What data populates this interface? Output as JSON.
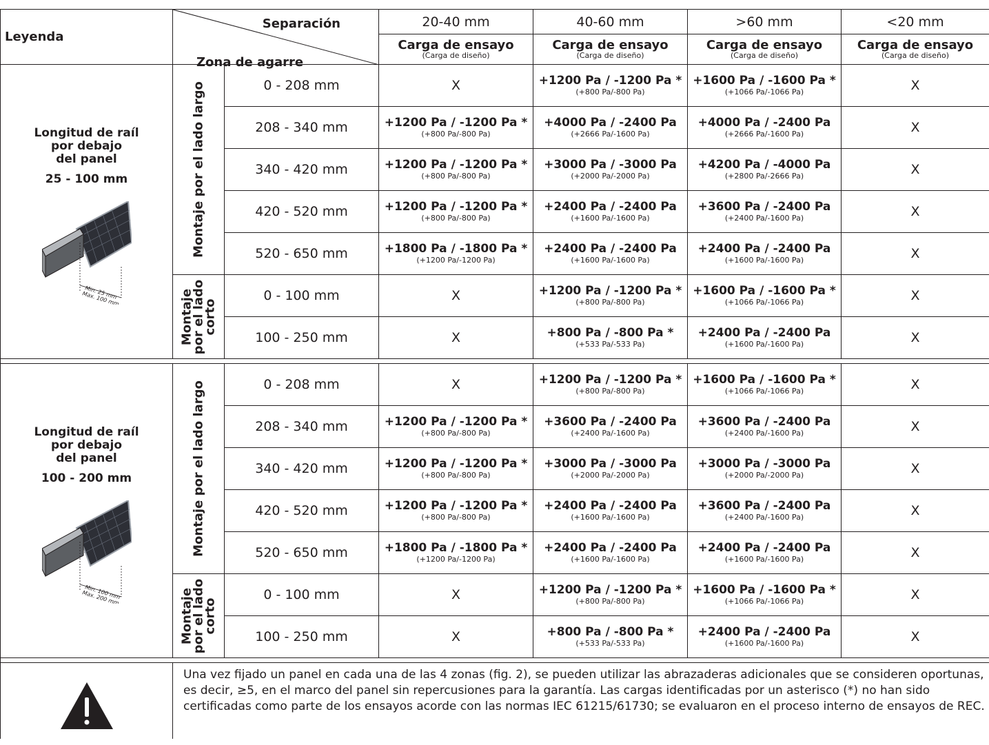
{
  "header": {
    "legend": "Leyenda",
    "separation_label": "Separación",
    "grip_zone_label": "Zona de agarre",
    "columns": [
      {
        "range": "20-40 mm",
        "load": "Carga de ensayo",
        "design": "(Carga de diseño)"
      },
      {
        "range": "40-60 mm",
        "load": "Carga de ensayo",
        "design": "(Carga de diseño)"
      },
      {
        "range": ">60 mm",
        "load": "Carga de ensayo",
        "design": "(Carga de diseño)"
      },
      {
        "range": "<20 mm",
        "load": "Carga de ensayo",
        "design": "(Carga de diseño)"
      }
    ]
  },
  "sections": [
    {
      "rail": {
        "line1": "Longitud de raíl",
        "line2": "por debajo",
        "line3": "del panel",
        "range": "25 - 100 mm",
        "min": "Min. 25 mm",
        "max": "Max. 100 mm"
      },
      "long_side": "Montaje por el lado largo",
      "short_side": "Montaje por el lado corto",
      "rows": [
        {
          "zone": "0 - 208 mm",
          "c1": {
            "m": "X",
            "s": ""
          },
          "c2": {
            "m": "+1200 Pa / -1200 Pa *",
            "s": "(+800 Pa/-800 Pa)"
          },
          "c3": {
            "m": "+1600 Pa / -1600 Pa *",
            "s": "(+1066 Pa/-1066 Pa)"
          },
          "c4": {
            "m": "X",
            "s": ""
          }
        },
        {
          "zone": "208 - 340 mm",
          "c1": {
            "m": "+1200 Pa / -1200 Pa *",
            "s": "(+800 Pa/-800 Pa)"
          },
          "c2": {
            "m": "+4000 Pa / -2400 Pa",
            "s": "(+2666 Pa/-1600 Pa)"
          },
          "c3": {
            "m": "+4000 Pa / -2400 Pa",
            "s": "(+2666 Pa/-1600 Pa)"
          },
          "c4": {
            "m": "X",
            "s": ""
          }
        },
        {
          "zone": "340 - 420 mm",
          "c1": {
            "m": "+1200 Pa / -1200 Pa *",
            "s": "(+800 Pa/-800 Pa)"
          },
          "c2": {
            "m": "+3000 Pa / -3000 Pa",
            "s": "(+2000 Pa/-2000 Pa)"
          },
          "c3": {
            "m": "+4200 Pa / -4000 Pa",
            "s": "(+2800 Pa/-2666 Pa)"
          },
          "c4": {
            "m": "X",
            "s": ""
          }
        },
        {
          "zone": "420 - 520 mm",
          "c1": {
            "m": "+1200 Pa / -1200 Pa *",
            "s": "(+800 Pa/-800 Pa)"
          },
          "c2": {
            "m": "+2400 Pa / -2400 Pa",
            "s": "(+1600 Pa/-1600 Pa)"
          },
          "c3": {
            "m": "+3600 Pa / -2400 Pa",
            "s": "(+2400 Pa/-1600 Pa)"
          },
          "c4": {
            "m": "X",
            "s": ""
          }
        },
        {
          "zone": "520 - 650 mm",
          "c1": {
            "m": "+1800 Pa / -1800 Pa *",
            "s": "(+1200 Pa/-1200 Pa)"
          },
          "c2": {
            "m": "+2400 Pa / -2400 Pa",
            "s": "(+1600 Pa/-1600 Pa)"
          },
          "c3": {
            "m": "+2400 Pa / -2400 Pa",
            "s": "(+1600 Pa/-1600 Pa)"
          },
          "c4": {
            "m": "X",
            "s": ""
          }
        },
        {
          "zone": "0 - 100 mm",
          "c1": {
            "m": "X",
            "s": ""
          },
          "c2": {
            "m": "+1200 Pa / -1200 Pa *",
            "s": "(+800 Pa/-800 Pa)"
          },
          "c3": {
            "m": "+1600 Pa / -1600 Pa *",
            "s": "(+1066 Pa/-1066 Pa)"
          },
          "c4": {
            "m": "X",
            "s": ""
          }
        },
        {
          "zone": "100 - 250 mm",
          "c1": {
            "m": "X",
            "s": ""
          },
          "c2": {
            "m": "+800 Pa / -800 Pa *",
            "s": "(+533 Pa/-533 Pa)"
          },
          "c3": {
            "m": "+2400 Pa / -2400 Pa",
            "s": "(+1600 Pa/-1600 Pa)"
          },
          "c4": {
            "m": "X",
            "s": ""
          }
        }
      ]
    },
    {
      "rail": {
        "line1": "Longitud de raíl",
        "line2": "por debajo",
        "line3": "del panel",
        "range": "100 - 200 mm",
        "min": "Min. 100 mm",
        "max": "Max. 200 mm"
      },
      "long_side": "Montaje por el lado largo",
      "short_side": "Montaje por el lado corto",
      "rows": [
        {
          "zone": "0 - 208 mm",
          "c1": {
            "m": "X",
            "s": ""
          },
          "c2": {
            "m": "+1200 Pa / -1200 Pa *",
            "s": "(+800 Pa/-800 Pa)"
          },
          "c3": {
            "m": "+1600 Pa / -1600 Pa *",
            "s": "(+1066 Pa/-1066 Pa)"
          },
          "c4": {
            "m": "X",
            "s": ""
          }
        },
        {
          "zone": "208 - 340 mm",
          "c1": {
            "m": "+1200 Pa / -1200 Pa *",
            "s": "(+800 Pa/-800 Pa)"
          },
          "c2": {
            "m": "+3600 Pa / -2400 Pa",
            "s": "(+2400 Pa/-1600 Pa)"
          },
          "c3": {
            "m": "+3600 Pa / -2400 Pa",
            "s": "(+2400 Pa/-1600 Pa)"
          },
          "c4": {
            "m": "X",
            "s": ""
          }
        },
        {
          "zone": "340 - 420 mm",
          "c1": {
            "m": "+1200 Pa / -1200 Pa *",
            "s": "(+800 Pa/-800 Pa)"
          },
          "c2": {
            "m": "+3000 Pa / -3000 Pa",
            "s": "(+2000 Pa/-2000 Pa)"
          },
          "c3": {
            "m": "+3000 Pa / -3000 Pa",
            "s": "(+2000 Pa/-2000 Pa)"
          },
          "c4": {
            "m": "X",
            "s": ""
          }
        },
        {
          "zone": "420 - 520 mm",
          "c1": {
            "m": "+1200 Pa / -1200 Pa *",
            "s": "(+800 Pa/-800 Pa)"
          },
          "c2": {
            "m": "+2400 Pa / -2400 Pa",
            "s": "(+1600 Pa/-1600 Pa)"
          },
          "c3": {
            "m": "+3600 Pa / -2400 Pa",
            "s": "(+2400 Pa/-1600 Pa)"
          },
          "c4": {
            "m": "X",
            "s": ""
          }
        },
        {
          "zone": "520 - 650 mm",
          "c1": {
            "m": "+1800 Pa / -1800 Pa *",
            "s": "(+1200 Pa/-1200 Pa)"
          },
          "c2": {
            "m": "+2400 Pa / -2400 Pa",
            "s": "(+1600 Pa/-1600 Pa)"
          },
          "c3": {
            "m": "+2400 Pa / -2400 Pa",
            "s": "(+1600 Pa/-1600 Pa)"
          },
          "c4": {
            "m": "X",
            "s": ""
          }
        },
        {
          "zone": "0 - 100 mm",
          "c1": {
            "m": "X",
            "s": ""
          },
          "c2": {
            "m": "+1200 Pa / -1200 Pa *",
            "s": "(+800 Pa/-800 Pa)"
          },
          "c3": {
            "m": "+1600 Pa / -1600 Pa *",
            "s": "(+1066 Pa/-1066 Pa)"
          },
          "c4": {
            "m": "X",
            "s": ""
          }
        },
        {
          "zone": "100 - 250 mm",
          "c1": {
            "m": "X",
            "s": ""
          },
          "c2": {
            "m": "+800 Pa / -800 Pa *",
            "s": "(+533 Pa/-533 Pa)"
          },
          "c3": {
            "m": "+2400 Pa / -2400 Pa",
            "s": "(+1600 Pa/-1600 Pa)"
          },
          "c4": {
            "m": "X",
            "s": ""
          }
        }
      ]
    }
  ],
  "note": {
    "icon": "warning-triangle-icon",
    "text": "Una vez fijado un panel en cada una de las 4 zonas (fig. 2), se pueden utilizar las abrazaderas adicionales que se consideren oportunas, es decir, ≥5, en el marco del panel sin repercusiones para la garantía. Las cargas identificadas por un asterisco (*) no han sido certificadas como parte de los ensayos acorde con las normas IEC 61215/61730; se evaluaron en el proceso interno de ensayos de REC."
  }
}
